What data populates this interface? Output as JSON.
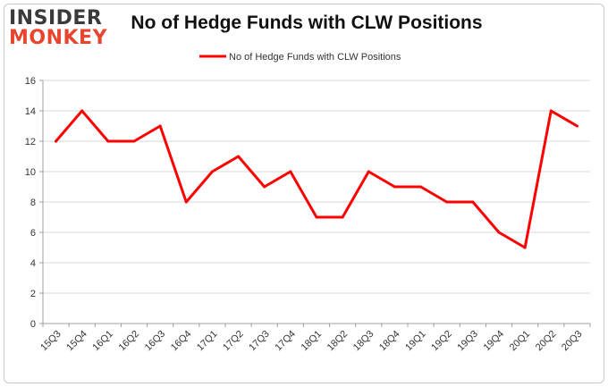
{
  "logo": {
    "line1": "INSIDER",
    "line2": "MONKEY"
  },
  "chart_data": {
    "type": "line",
    "title": "No of Hedge Funds with CLW Positions",
    "xlabel": "",
    "ylabel": "",
    "categories": [
      "15Q3",
      "15Q4",
      "16Q1",
      "16Q2",
      "16Q3",
      "16Q4",
      "17Q1",
      "17Q2",
      "17Q3",
      "17Q4",
      "18Q1",
      "18Q2",
      "18Q3",
      "18Q4",
      "19Q1",
      "19Q2",
      "19Q3",
      "19Q4",
      "20Q1",
      "20Q2",
      "20Q3"
    ],
    "series": [
      {
        "name": "No of Hedge Funds with CLW Positions",
        "values": [
          12,
          14,
          12,
          12,
          13,
          8,
          10,
          11,
          9,
          10,
          7,
          7,
          10,
          9,
          9,
          8,
          8,
          6,
          5,
          14,
          13
        ],
        "color": "#ff0000"
      }
    ],
    "ylim": [
      0,
      16
    ],
    "yticks": [
      0,
      2,
      4,
      6,
      8,
      10,
      12,
      14,
      16
    ],
    "grid": true,
    "legend_position": "top-center"
  }
}
